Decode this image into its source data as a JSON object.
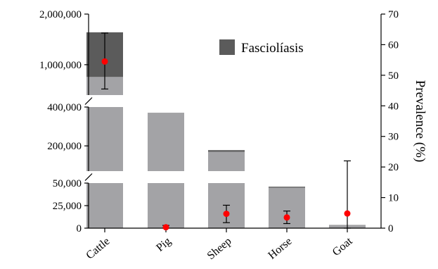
{
  "chart_data": {
    "type": "bar",
    "categories": [
      "Cattle",
      "Pig",
      "Sheep",
      "Horse",
      "Goat"
    ],
    "left_axis": {
      "broken": true,
      "segments": [
        {
          "range": [
            0,
            50000
          ],
          "ticks": [
            0,
            25000,
            50000
          ],
          "tick_labels": [
            "0",
            "25,000",
            "50,000"
          ]
        },
        {
          "range": [
            70000,
            400000
          ],
          "ticks": [
            200000,
            400000
          ],
          "tick_labels": [
            "200,000",
            "400,000"
          ]
        },
        {
          "range": [
            400000,
            2000000
          ],
          "ticks": [
            1000000,
            2000000
          ],
          "tick_labels": [
            "1,000,000",
            "2,000,000"
          ]
        }
      ]
    },
    "right_axis": {
      "label": "Prevalence (%)",
      "range": [
        0,
        70
      ],
      "ticks": [
        0,
        10,
        20,
        30,
        40,
        50,
        60,
        70
      ],
      "tick_labels": [
        "0",
        "10",
        "20",
        "30",
        "40",
        "50",
        "60",
        "70"
      ]
    },
    "series": [
      {
        "name": "",
        "kind": "bar",
        "color": "#a3a3a6",
        "values": [
          760000,
          370000,
          170000,
          45000,
          3500
        ]
      },
      {
        "name": "Fasciolíasis",
        "kind": "bar",
        "color": "#5b5b5b",
        "values": [
          1640000,
          370000,
          178000,
          46000,
          3600
        ]
      },
      {
        "name": "",
        "kind": "point",
        "axis": "right",
        "color": "#ff0000",
        "values": [
          54.5,
          0.3,
          4.7,
          3.5,
          4.8
        ],
        "error_low": [
          45.5,
          0.0,
          1.8,
          1.5,
          0.0
        ],
        "error_high": [
          63.8,
          0.9,
          7.5,
          5.6,
          22.0
        ]
      }
    ],
    "legend": {
      "position": "top-right"
    }
  }
}
